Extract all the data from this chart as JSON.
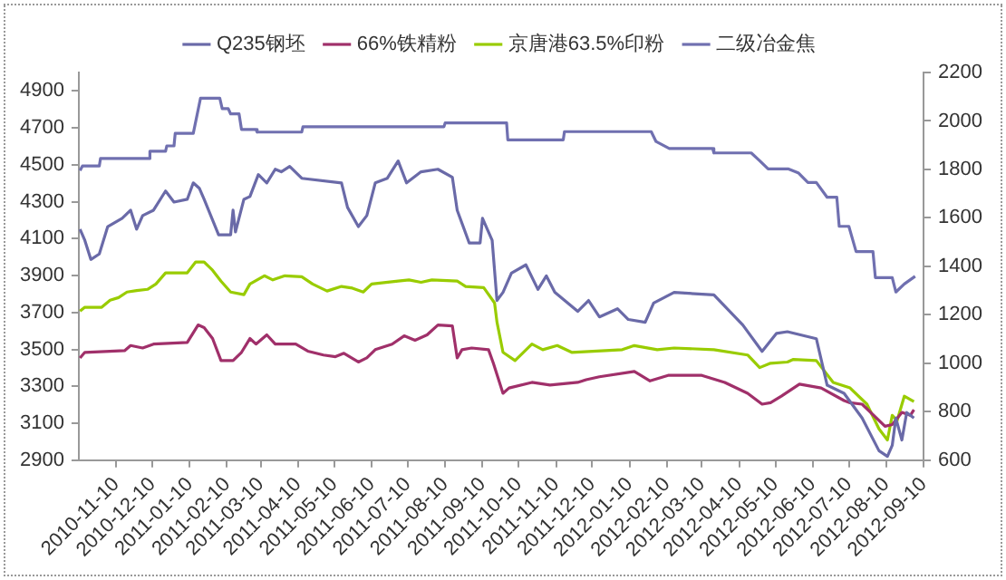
{
  "chart_data": {
    "type": "line",
    "legend": "top",
    "grid": false,
    "marker": "none",
    "xlim": [
      "2010-10-10",
      "2012-09-10"
    ],
    "xticks": [
      "2010-11-10",
      "2010-12-10",
      "2011-01-10",
      "2011-02-10",
      "2011-03-10",
      "2011-04-10",
      "2011-05-10",
      "2011-06-10",
      "2011-07-10",
      "2011-08-10",
      "2011-09-10",
      "2011-10-10",
      "2011-11-10",
      "2011-12-10",
      "2012-01-10",
      "2012-02-10",
      "2012-03-10",
      "2012-04-10",
      "2012-05-10",
      "2012-06-10",
      "2012-07-10",
      "2012-08-10",
      "2012-09-10"
    ],
    "ylim": [
      2900,
      5000
    ],
    "yticks": [
      2900,
      3100,
      3300,
      3500,
      3700,
      3900,
      4100,
      4300,
      4500,
      4700,
      4900
    ],
    "y2lim": [
      600,
      2200
    ],
    "y2ticks": [
      600,
      800,
      1000,
      1200,
      1400,
      1600,
      1800,
      2000,
      2200
    ],
    "series": [
      {
        "name": "Q235钢坯",
        "color": "#6a6aa8",
        "x": [
          "2010-10-11",
          "2010-10-15",
          "2010-10-20",
          "2010-10-27",
          "2010-11-03",
          "2010-11-15",
          "2010-11-22",
          "2010-11-27",
          "2010-12-02",
          "2010-12-11",
          "2010-12-21",
          "2010-12-28",
          "2011-01-08",
          "2011-01-13",
          "2011-01-18",
          "2011-01-22",
          "2011-02-03",
          "2011-02-13",
          "2011-02-15",
          "2011-02-17",
          "2011-02-24",
          "2011-03-01",
          "2011-03-08",
          "2011-03-15",
          "2011-03-22",
          "2011-03-27",
          "2011-04-03",
          "2011-04-13",
          "2011-05-16",
          "2011-05-21",
          "2011-05-30",
          "2011-06-06",
          "2011-06-13",
          "2011-06-23",
          "2011-07-02",
          "2011-07-09",
          "2011-07-21",
          "2011-08-04",
          "2011-08-16",
          "2011-08-20",
          "2011-08-30",
          "2011-09-08",
          "2011-09-10",
          "2011-09-18",
          "2011-09-22",
          "2011-09-27",
          "2011-10-04",
          "2011-10-16",
          "2011-10-26",
          "2011-11-02",
          "2011-11-09",
          "2011-11-28",
          "2011-12-07",
          "2011-12-16",
          "2011-12-31",
          "2012-01-09",
          "2012-01-23",
          "2012-01-30",
          "2012-02-16",
          "2012-03-20",
          "2012-04-13",
          "2012-04-29",
          "2012-05-11",
          "2012-05-20",
          "2012-06-13",
          "2012-06-22",
          "2012-07-06",
          "2012-07-21",
          "2012-08-04",
          "2012-08-11",
          "2012-08-15",
          "2012-08-18",
          "2012-08-23",
          "2012-08-27",
          "2012-09-02"
        ],
        "values": [
          4151,
          4091,
          3987,
          4017,
          4165,
          4210,
          4254,
          4151,
          4225,
          4254,
          4358,
          4298,
          4313,
          4402,
          4373,
          4313,
          4121,
          4121,
          4254,
          4136,
          4313,
          4328,
          4447,
          4402,
          4476,
          4462,
          4491,
          4427,
          4402,
          4269,
          4165,
          4225,
          4402,
          4427,
          4521,
          4402,
          4462,
          4476,
          4432,
          4254,
          4076,
          4076,
          4210,
          4091,
          3765,
          3809,
          3913,
          3958,
          3825,
          3898,
          3809,
          3706,
          3765,
          3676,
          3720,
          3662,
          3647,
          3751,
          3809,
          3795,
          3632,
          3489,
          3587,
          3596,
          3558,
          3306,
          3262,
          3128,
          2951,
          2920,
          2980,
          3128,
          3009,
          3158,
          3128
        ]
      },
      {
        "name": "66%铁精粉",
        "color": "#a0306a",
        "axis": "y2",
        "x": [
          "2010-10-11",
          "2010-10-15",
          "2010-11-17",
          "2010-11-22",
          "2010-12-02",
          "2010-12-11",
          "2011-01-08",
          "2011-01-17",
          "2011-01-22",
          "2011-01-29",
          "2011-02-05",
          "2011-02-15",
          "2011-02-22",
          "2011-03-01",
          "2011-03-06",
          "2011-03-15",
          "2011-03-22",
          "2011-04-08",
          "2011-04-18",
          "2011-05-01",
          "2011-05-11",
          "2011-05-18",
          "2011-05-30",
          "2011-06-06",
          "2011-06-13",
          "2011-06-27",
          "2011-07-07",
          "2011-07-16",
          "2011-07-26",
          "2011-08-04",
          "2011-08-16",
          "2011-08-20",
          "2011-08-24",
          "2011-09-01",
          "2011-09-15",
          "2011-09-19",
          "2011-09-27",
          "2011-10-02",
          "2011-10-21",
          "2011-11-05",
          "2011-11-28",
          "2011-12-05",
          "2011-12-16",
          "2012-01-14",
          "2012-01-27",
          "2012-02-11",
          "2012-03-10",
          "2012-03-29",
          "2012-04-17",
          "2012-04-29",
          "2012-05-06",
          "2012-05-15",
          "2012-05-30",
          "2012-06-17",
          "2012-07-06",
          "2012-07-11",
          "2012-07-21",
          "2012-08-09",
          "2012-08-15",
          "2012-08-23",
          "2012-08-30",
          "2012-09-02"
        ],
        "values": [
          1022,
          1045,
          1052,
          1073,
          1063,
          1079,
          1086,
          1158,
          1147,
          1102,
          1011,
          1011,
          1045,
          1102,
          1079,
          1117,
          1079,
          1079,
          1050,
          1034,
          1027,
          1041,
          1005,
          1022,
          1056,
          1079,
          1113,
          1095,
          1117,
          1158,
          1154,
          1022,
          1056,
          1063,
          1056,
          1000,
          876,
          898,
          921,
          910,
          921,
          932,
          944,
          966,
          927,
          950,
          950,
          921,
          876,
          831,
          837,
          864,
          914,
          898,
          846,
          837,
          831,
          740,
          747,
          797,
          785,
          808
        ]
      },
      {
        "name": "京唐港63.5%印粉",
        "color": "#99cc00",
        "axis": "y2",
        "x": [
          "2010-10-11",
          "2010-10-15",
          "2010-10-29",
          "2010-11-05",
          "2010-11-12",
          "2010-11-19",
          "2010-11-27",
          "2010-12-06",
          "2010-12-13",
          "2010-12-21",
          "2011-01-08",
          "2011-01-15",
          "2011-01-22",
          "2011-01-29",
          "2011-02-05",
          "2011-02-13",
          "2011-02-24",
          "2011-03-01",
          "2011-03-13",
          "2011-03-20",
          "2011-03-30",
          "2011-04-13",
          "2011-04-22",
          "2011-05-04",
          "2011-05-16",
          "2011-05-25",
          "2011-06-03",
          "2011-06-10",
          "2011-07-02",
          "2011-07-11",
          "2011-07-21",
          "2011-07-30",
          "2011-08-20",
          "2011-08-27",
          "2011-09-11",
          "2011-09-20",
          "2011-09-22",
          "2011-09-27",
          "2011-10-07",
          "2011-10-21",
          "2011-10-30",
          "2011-11-11",
          "2011-11-23",
          "2012-01-04",
          "2012-01-14",
          "2012-02-02",
          "2012-02-16",
          "2012-03-20",
          "2012-04-17",
          "2012-04-27",
          "2012-05-06",
          "2012-05-20",
          "2012-05-25",
          "2012-06-13",
          "2012-06-27",
          "2012-07-11",
          "2012-07-25",
          "2012-08-04",
          "2012-08-11",
          "2012-08-15",
          "2012-08-19",
          "2012-08-25",
          "2012-09-02"
        ],
        "values": [
          1215,
          1231,
          1231,
          1260,
          1271,
          1294,
          1300,
          1305,
          1327,
          1373,
          1373,
          1418,
          1418,
          1384,
          1339,
          1294,
          1283,
          1327,
          1361,
          1344,
          1361,
          1357,
          1327,
          1298,
          1317,
          1310,
          1294,
          1327,
          1339,
          1344,
          1334,
          1344,
          1339,
          1317,
          1312,
          1249,
          1170,
          1045,
          1011,
          1079,
          1056,
          1073,
          1045,
          1056,
          1073,
          1056,
          1063,
          1056,
          1034,
          982,
          1000,
          1005,
          1016,
          1011,
          921,
          898,
          831,
          729,
          683,
          785,
          763,
          864,
          842
        ]
      },
      {
        "name": "二级冶金焦",
        "color": "#7070b0",
        "axis": "y2",
        "x": [
          "2010-10-11",
          "2010-10-13",
          "2010-10-27",
          "2010-10-28",
          "2010-12-07",
          "2010-12-08",
          "2010-12-21",
          "2010-12-22",
          "2010-12-28",
          "2010-12-29",
          "2011-01-13",
          "2011-01-19",
          "2011-02-04",
          "2011-02-06",
          "2011-02-11",
          "2011-02-13",
          "2011-02-20",
          "2011-02-22",
          "2011-03-06",
          "2011-03-07",
          "2011-04-13",
          "2011-04-14",
          "2011-08-09",
          "2011-08-10",
          "2011-09-30",
          "2011-10-01",
          "2011-11-16",
          "2011-11-17",
          "2012-01-28",
          "2012-02-01",
          "2012-02-12",
          "2012-03-19",
          "2012-03-20",
          "2012-04-20",
          "2012-04-27",
          "2012-05-04",
          "2012-05-21",
          "2012-05-29",
          "2012-06-06",
          "2012-06-13",
          "2012-06-22",
          "2012-06-30",
          "2012-07-02",
          "2012-07-10",
          "2012-07-16",
          "2012-07-30",
          "2012-08-01",
          "2012-08-15",
          "2012-08-18",
          "2012-08-25",
          "2012-09-03"
        ],
        "values": [
          1795,
          1814,
          1814,
          1845,
          1845,
          1875,
          1875,
          1897,
          1897,
          1949,
          1949,
          2094,
          2094,
          2051,
          2051,
          2029,
          2029,
          1965,
          1965,
          1954,
          1954,
          1976,
          1976,
          1992,
          1992,
          1922,
          1922,
          1956,
          1956,
          1915,
          1886,
          1886,
          1868,
          1868,
          1836,
          1802,
          1802,
          1786,
          1746,
          1746,
          1685,
          1685,
          1565,
          1565,
          1461,
          1461,
          1353,
          1353,
          1294,
          1327,
          1359
        ]
      }
    ]
  }
}
